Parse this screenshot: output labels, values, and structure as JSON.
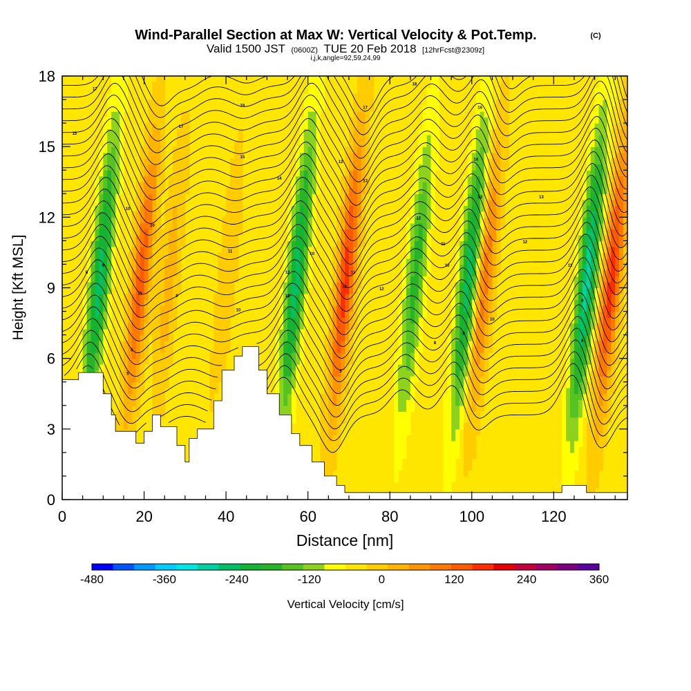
{
  "chart_data": {
    "type": "heatmap",
    "title": "Wind-Parallel Section at Max W: Vertical Velocity & Pot.Temp.",
    "title_mark": "(C)",
    "subtitle": {
      "valid": "Valid 1500 JST",
      "utc": "(0600Z)",
      "date": "TUE 20 Feb 2018",
      "forecast": "[12hrFcst@2309z]",
      "indices": "i,j,k,angle=92,59,24,99"
    },
    "xlabel": "Distance [nm]",
    "ylabel": "Height [Kft MSL]",
    "xlim": [
      0,
      138
    ],
    "ylim": [
      0,
      18
    ],
    "xticks": [
      "0",
      "20",
      "40",
      "60",
      "80",
      "100",
      "120"
    ],
    "yticks": [
      "0",
      "3",
      "6",
      "9",
      "12",
      "15",
      "18"
    ],
    "colorbar": {
      "label": "Vertical Velocity [cm/s]",
      "range": [
        -480,
        360
      ],
      "step": 40,
      "tick_labels": [
        "-480",
        "-360",
        "-240",
        "-120",
        "0",
        "120",
        "240",
        "360"
      ],
      "colors": [
        "#0000ff",
        "#0055ff",
        "#0099ff",
        "#00ccff",
        "#00e5e5",
        "#00d2a0",
        "#00c064",
        "#14b432",
        "#28b428",
        "#55c322",
        "#8cd21e",
        "#ffff00",
        "#ffe600",
        "#ffcc00",
        "#ffb400",
        "#ff9600",
        "#ff7800",
        "#ff5a00",
        "#ff2d00",
        "#e60000",
        "#c3003c",
        "#a00064",
        "#7d0082",
        "#5a00a0"
      ]
    },
    "vertical_velocity_features": [
      {
        "x": 9,
        "sign": "down",
        "peak": -240
      },
      {
        "x": 19,
        "sign": "up",
        "peak": 200
      },
      {
        "x": 26,
        "sign": "up",
        "peak": 80
      },
      {
        "x": 40,
        "sign": "up",
        "peak": 60
      },
      {
        "x": 57,
        "sign": "down",
        "peak": -240
      },
      {
        "x": 69,
        "sign": "up",
        "peak": 240
      },
      {
        "x": 86,
        "sign": "down",
        "peak": -160
      },
      {
        "x": 99,
        "sign": "down",
        "peak": -240
      },
      {
        "x": 103,
        "sign": "up",
        "peak": 160
      },
      {
        "x": 128,
        "sign": "down",
        "peak": -280
      },
      {
        "x": 134,
        "sign": "up",
        "peak": 240
      }
    ],
    "terrain_height_kft": [
      [
        0,
        5.1
      ],
      [
        2,
        5.1
      ],
      [
        4,
        5.4
      ],
      [
        8,
        5.4
      ],
      [
        10,
        4.5
      ],
      [
        12,
        3.6
      ],
      [
        13,
        2.9
      ],
      [
        16,
        2.9
      ],
      [
        18,
        2.4
      ],
      [
        19,
        2.4
      ],
      [
        20,
        2.9
      ],
      [
        22,
        3.6
      ],
      [
        24,
        3.1
      ],
      [
        26,
        3.1
      ],
      [
        28,
        2.3
      ],
      [
        30,
        1.6
      ],
      [
        31,
        2.6
      ],
      [
        33,
        3.0
      ],
      [
        35,
        3.0
      ],
      [
        37,
        4.2
      ],
      [
        39,
        5.5
      ],
      [
        42,
        6.1
      ],
      [
        44,
        6.5
      ],
      [
        47,
        6.5
      ],
      [
        48,
        5.5
      ],
      [
        50,
        4.5
      ],
      [
        53,
        3.6
      ],
      [
        56,
        2.8
      ],
      [
        58,
        2.3
      ],
      [
        61,
        1.6
      ],
      [
        64,
        1.0
      ],
      [
        67,
        0.6
      ],
      [
        69,
        0.3
      ],
      [
        121,
        0.3
      ],
      [
        122,
        0.6
      ],
      [
        126,
        0.6
      ],
      [
        128,
        0.3
      ],
      [
        138,
        0.3
      ]
    ],
    "isentrope_labels": [
      {
        "x": 8,
        "y": 17.4,
        "text": "17"
      },
      {
        "x": 3,
        "y": 15.5,
        "text": "15"
      },
      {
        "x": 29,
        "y": 15.8,
        "text": "17"
      },
      {
        "x": 44,
        "y": 16.7,
        "text": "18"
      },
      {
        "x": 44,
        "y": 14.5,
        "text": "15"
      },
      {
        "x": 53,
        "y": 13.6,
        "text": "14"
      },
      {
        "x": 68,
        "y": 14.3,
        "text": "12"
      },
      {
        "x": 74,
        "y": 16.6,
        "text": "17"
      },
      {
        "x": 74,
        "y": 13.5,
        "text": "13"
      },
      {
        "x": 86,
        "y": 17.6,
        "text": "18"
      },
      {
        "x": 102,
        "y": 16.6,
        "text": "16"
      },
      {
        "x": 101,
        "y": 14.4,
        "text": "14"
      },
      {
        "x": 102,
        "y": 12.8,
        "text": "13"
      },
      {
        "x": 117,
        "y": 12.8,
        "text": "13"
      },
      {
        "x": 16,
        "y": 12.3,
        "text": "10"
      },
      {
        "x": 22,
        "y": 11.6,
        "text": "10"
      },
      {
        "x": 87,
        "y": 11.9,
        "text": "12"
      },
      {
        "x": 93,
        "y": 10.8,
        "text": "11"
      },
      {
        "x": 113,
        "y": 10.9,
        "text": "12"
      },
      {
        "x": 41,
        "y": 10.5,
        "text": "11"
      },
      {
        "x": 61,
        "y": 10.4,
        "text": "10"
      },
      {
        "x": 10,
        "y": 9.9,
        "text": "9"
      },
      {
        "x": 6,
        "y": 9.6,
        "text": "8"
      },
      {
        "x": 71,
        "y": 9.6,
        "text": "11"
      },
      {
        "x": 94,
        "y": 9.9,
        "text": "10"
      },
      {
        "x": 124,
        "y": 9.9,
        "text": "11"
      },
      {
        "x": 55,
        "y": 9.6,
        "text": "12"
      },
      {
        "x": 69,
        "y": 9.0,
        "text": "11"
      },
      {
        "x": 78,
        "y": 8.9,
        "text": "12"
      },
      {
        "x": 19,
        "y": 8.7,
        "text": "11"
      },
      {
        "x": 28,
        "y": 8.6,
        "text": "9"
      },
      {
        "x": 55,
        "y": 8.6,
        "text": "10"
      },
      {
        "x": 43,
        "y": 8.0,
        "text": "10"
      },
      {
        "x": 127,
        "y": 8.4,
        "text": "8"
      },
      {
        "x": 105,
        "y": 7.6,
        "text": "10"
      },
      {
        "x": 98,
        "y": 7.0,
        "text": "9"
      },
      {
        "x": 91,
        "y": 6.6,
        "text": "8"
      },
      {
        "x": 17,
        "y": 6.3,
        "text": "6"
      },
      {
        "x": 127,
        "y": 6.7,
        "text": "6"
      },
      {
        "x": 16,
        "y": 5.3,
        "text": "5"
      },
      {
        "x": 68,
        "y": 5.4,
        "text": "5"
      }
    ]
  }
}
